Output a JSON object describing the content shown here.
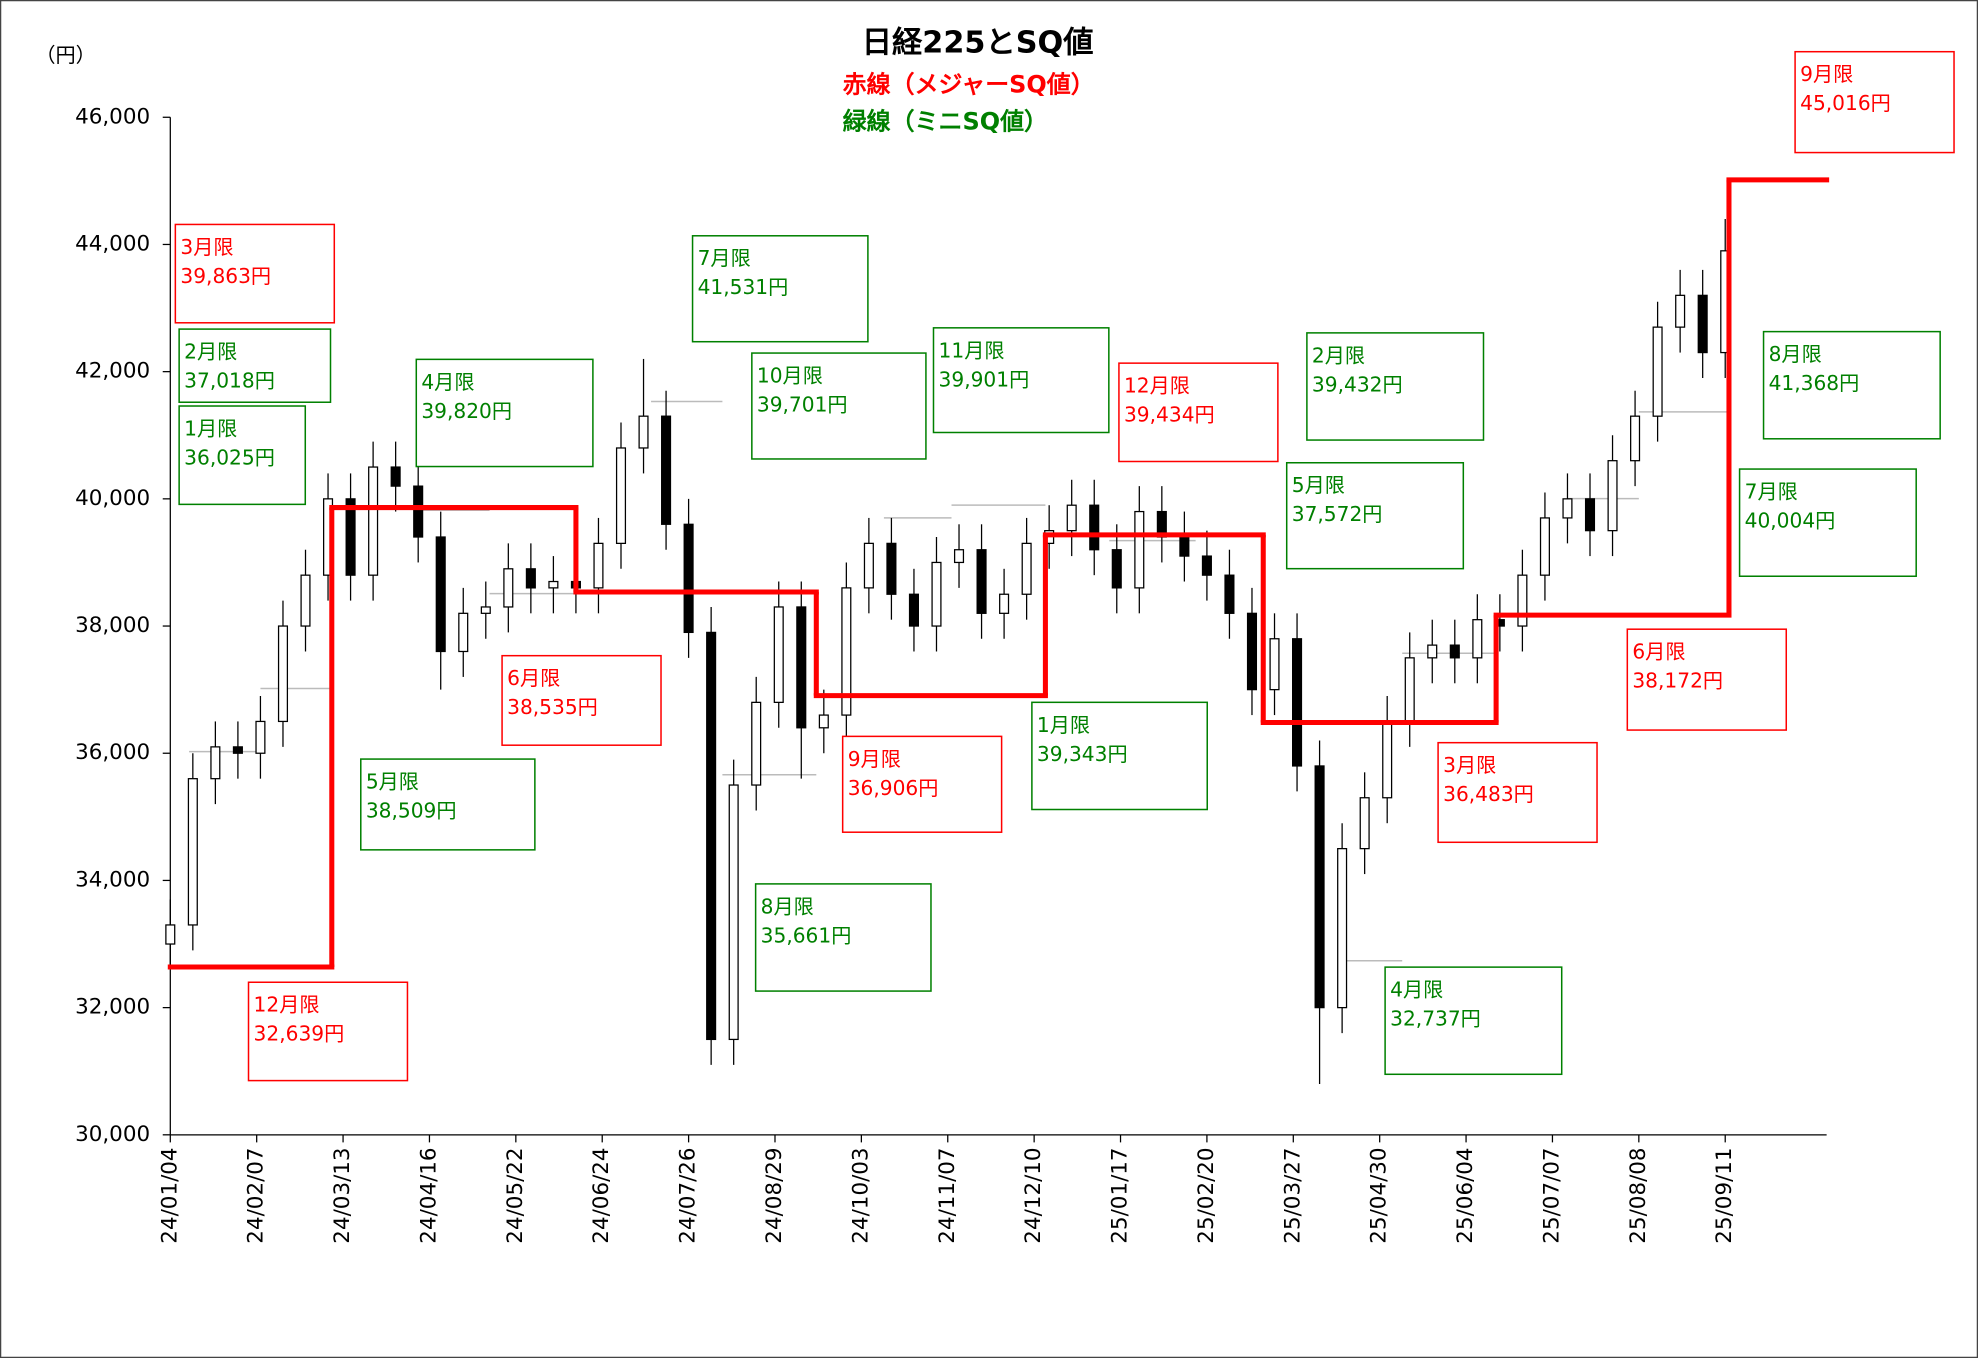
{
  "chart_data": {
    "type": "candlestick",
    "title": "日経225とSQ値",
    "y_unit": "（円）",
    "ylim": [
      30000,
      46000
    ],
    "yticks": [
      {
        "value": 30000,
        "label": "30,000"
      },
      {
        "value": 32000,
        "label": "32,000"
      },
      {
        "value": 34000,
        "label": "34,000"
      },
      {
        "value": 36000,
        "label": "36,000"
      },
      {
        "value": 38000,
        "label": "38,000"
      },
      {
        "value": 40000,
        "label": "40,000"
      },
      {
        "value": 42000,
        "label": "42,000"
      },
      {
        "value": 44000,
        "label": "44,000"
      },
      {
        "value": 46000,
        "label": "46,000"
      }
    ],
    "xlim": [
      0,
      441
    ],
    "xticks": [
      {
        "value": 0,
        "label": "24/01/04"
      },
      {
        "value": 23,
        "label": "24/02/07"
      },
      {
        "value": 46,
        "label": "24/03/13"
      },
      {
        "value": 69,
        "label": "24/04/16"
      },
      {
        "value": 92,
        "label": "24/05/22"
      },
      {
        "value": 115,
        "label": "24/06/24"
      },
      {
        "value": 138,
        "label": "24/07/26"
      },
      {
        "value": 161,
        "label": "24/08/29"
      },
      {
        "value": 184,
        "label": "24/10/03"
      },
      {
        "value": 207,
        "label": "24/11/07"
      },
      {
        "value": 230,
        "label": "24/12/10"
      },
      {
        "value": 253,
        "label": "25/01/17"
      },
      {
        "value": 276,
        "label": "25/02/20"
      },
      {
        "value": 299,
        "label": "25/03/27"
      },
      {
        "value": 322,
        "label": "25/04/30"
      },
      {
        "value": 345,
        "label": "25/06/04"
      },
      {
        "value": 368,
        "label": "25/07/07"
      },
      {
        "value": 391,
        "label": "25/08/08"
      },
      {
        "value": 414,
        "label": "25/09/11"
      }
    ],
    "candles": {
      "x": [
        0,
        6,
        12,
        18,
        24,
        30,
        36,
        42,
        48,
        54,
        60,
        66,
        72,
        78,
        84,
        90,
        96,
        102,
        108,
        114,
        120,
        126,
        132,
        138,
        144,
        150,
        156,
        162,
        168,
        174,
        180,
        186,
        192,
        198,
        204,
        210,
        216,
        222,
        228,
        234,
        240,
        246,
        252,
        258,
        264,
        270,
        276,
        282,
        288,
        294,
        300,
        306,
        312,
        318,
        324,
        330,
        336,
        342,
        348,
        354,
        360,
        366,
        372,
        378,
        384,
        390,
        396,
        402,
        408,
        414
      ],
      "open": [
        33000,
        33300,
        35600,
        36100,
        36000,
        36500,
        38000,
        38800,
        40000,
        38800,
        40500,
        40200,
        39400,
        37600,
        38200,
        38300,
        38900,
        38600,
        38700,
        38600,
        39300,
        40800,
        41300,
        39600,
        37900,
        31500,
        35500,
        36800,
        38300,
        36400,
        36600,
        38600,
        39300,
        38500,
        38000,
        39000,
        39200,
        38200,
        38500,
        39300,
        39500,
        39900,
        39200,
        38600,
        39800,
        39400,
        39100,
        38800,
        38200,
        37000,
        37800,
        35800,
        32000,
        34500,
        35300,
        36500,
        37500,
        37700,
        37500,
        38100,
        38000,
        38800,
        39700,
        40000,
        39500,
        40600,
        41300,
        42700,
        43200,
        42300
      ],
      "high": [
        33700,
        36000,
        36500,
        36500,
        36900,
        38400,
        39200,
        40400,
        40400,
        40900,
        40900,
        40600,
        39800,
        38600,
        38700,
        39300,
        39300,
        39100,
        39100,
        39700,
        41200,
        42200,
        41700,
        40000,
        38300,
        35900,
        37200,
        38700,
        38700,
        37000,
        39000,
        39700,
        39700,
        38900,
        39400,
        39600,
        39600,
        38900,
        39700,
        39900,
        40300,
        40300,
        39600,
        40200,
        40200,
        39800,
        39500,
        39200,
        38600,
        38200,
        38200,
        36200,
        34900,
        35700,
        36900,
        37900,
        38100,
        38100,
        38500,
        38500,
        39200,
        40100,
        40400,
        40400,
        41000,
        41700,
        43100,
        43600,
        43600,
        44400
      ],
      "low": [
        32600,
        32900,
        35200,
        35600,
        35600,
        36100,
        37600,
        38400,
        38400,
        38400,
        39800,
        39000,
        37000,
        37200,
        37800,
        37900,
        38200,
        38200,
        38200,
        38200,
        38900,
        40400,
        39200,
        37500,
        31100,
        31100,
        35100,
        36400,
        35600,
        36000,
        36200,
        38200,
        38100,
        37600,
        37600,
        38600,
        37800,
        37800,
        38100,
        38900,
        39100,
        38800,
        38200,
        38200,
        39000,
        38700,
        38400,
        37800,
        36600,
        36600,
        35400,
        30800,
        31600,
        34100,
        34900,
        36100,
        37100,
        37100,
        37100,
        37600,
        37600,
        38400,
        39300,
        39100,
        39100,
        40200,
        40900,
        42300,
        41900,
        41900
      ],
      "close": [
        33300,
        35600,
        36100,
        36000,
        36500,
        38000,
        38800,
        40000,
        38800,
        40500,
        40200,
        39400,
        37600,
        38200,
        38300,
        38900,
        38600,
        38700,
        38600,
        39300,
        40800,
        41300,
        39600,
        37900,
        31500,
        35500,
        36800,
        38300,
        36400,
        36600,
        38600,
        39300,
        38500,
        38000,
        39000,
        39200,
        38200,
        38500,
        39300,
        39500,
        39900,
        39200,
        38600,
        39800,
        39400,
        39100,
        38800,
        38200,
        37000,
        37800,
        35800,
        32000,
        34500,
        35300,
        36500,
        37500,
        37700,
        37500,
        38100,
        38000,
        38800,
        39700,
        40000,
        39500,
        40600,
        41300,
        42700,
        43200,
        42300,
        43900
      ]
    },
    "series": [
      {
        "name": "赤線（メジャーSQ値）",
        "color": "#ff0000",
        "x": [
          0,
          43,
          108,
          172,
          233,
          291,
          353,
          415
        ],
        "labels": [
          "12月限",
          "3月限",
          "6月限",
          "9月限",
          "12月限",
          "3月限",
          "6月限",
          "9月限"
        ],
        "values": [
          32639,
          39863,
          38535,
          36906,
          39434,
          36483,
          38172,
          45016
        ],
        "value_labels": [
          "32,639円",
          "39,863円",
          "38,535円",
          "36,906円",
          "39,434円",
          "36,483円",
          "38,172円",
          "45,016円"
        ]
      },
      {
        "name": "緑線（ミニSQ値）",
        "color": "#008000",
        "x": [
          5,
          24,
          67,
          85,
          128,
          147,
          190,
          208,
          250,
          273,
          311,
          328,
          372,
          391
        ],
        "labels": [
          "1月限",
          "2月限",
          "4月限",
          "5月限",
          "7月限",
          "8月限",
          "10月限",
          "11月限",
          "1月限",
          "2月限",
          "4月限",
          "5月限",
          "7月限",
          "8月限"
        ],
        "values": [
          36025,
          37018,
          39820,
          38509,
          41531,
          35661,
          39701,
          39901,
          39343,
          39432,
          32737,
          37572,
          40004,
          41368
        ],
        "value_labels": [
          "36,025円",
          "37,018円",
          "39,820円",
          "38,509円",
          "41,531円",
          "35,661円",
          "39,701円",
          "39,901円",
          "39,343円",
          "39,432円",
          "32,737円",
          "37,572円",
          "40,004円",
          "41,368円"
        ]
      }
    ]
  }
}
